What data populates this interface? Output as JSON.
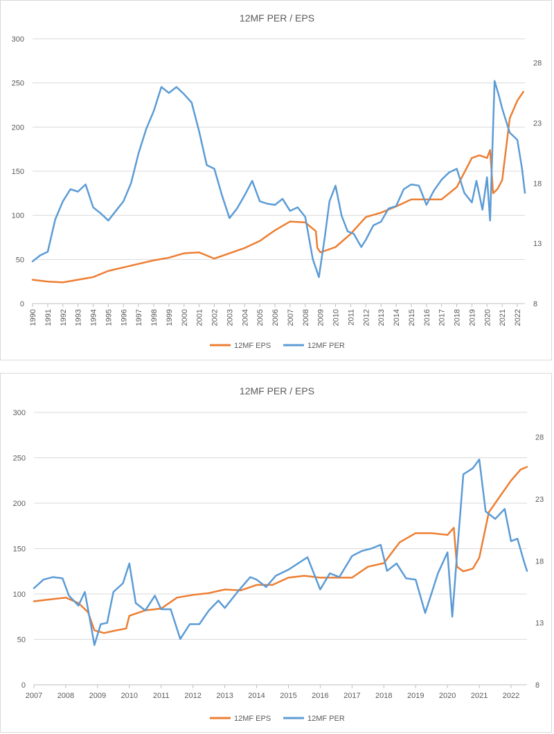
{
  "colors": {
    "eps": "#ED7D31",
    "per": "#5B9BD5",
    "grid": "#D9D9D9",
    "text": "#595959"
  },
  "chart_data": [
    {
      "type": "line",
      "title": "12MF PER / EPS",
      "x_ticks": [
        "1990",
        "1991",
        "1992",
        "1993",
        "1994",
        "1995",
        "1996",
        "1997",
        "1998",
        "1999",
        "2000",
        "2001",
        "2002",
        "2003",
        "2004",
        "2005",
        "2006",
        "2007",
        "2008",
        "2009",
        "2010",
        "2011",
        "2012",
        "2013",
        "2014",
        "2015",
        "2016",
        "2017",
        "2018",
        "2019",
        "2020",
        "2021",
        "2022"
      ],
      "x_range": [
        1990,
        2022.5
      ],
      "y_left": {
        "ticks": [
          "0",
          "50",
          "100",
          "150",
          "200",
          "250",
          "300"
        ],
        "range": [
          0,
          300
        ]
      },
      "y_right": {
        "ticks": [
          "8",
          "13",
          "18",
          "23",
          "28"
        ],
        "range": [
          8,
          30
        ]
      },
      "legend": [
        "12MF EPS",
        "12MF PER"
      ],
      "series": [
        {
          "name": "12MF EPS",
          "axis": "left",
          "x": [
            1990,
            1991,
            1992,
            1993,
            1994,
            1995,
            1996,
            1997,
            1998,
            1999,
            2000,
            2001,
            2002,
            2003,
            2004,
            2005,
            2006,
            2007,
            2008,
            2008.7,
            2008.8,
            2009,
            2010,
            2011,
            2012,
            2013,
            2014,
            2015,
            2016,
            2017,
            2018,
            2019,
            2019.5,
            2020,
            2020.2,
            2020.4,
            2020.7,
            2021,
            2021.5,
            2022,
            2022.4
          ],
          "y": [
            27,
            25,
            24,
            27,
            30,
            37,
            41,
            45,
            49,
            52,
            57,
            58,
            51,
            57,
            63,
            71,
            83,
            93,
            92,
            82,
            63,
            58,
            64,
            79,
            98,
            103,
            110,
            118,
            118,
            118,
            132,
            165,
            168,
            165,
            174,
            125,
            130,
            140,
            210,
            230,
            240
          ]
        },
        {
          "name": "12MF PER",
          "axis": "right",
          "x": [
            1990,
            1990.5,
            1991,
            1991.5,
            1992,
            1992.5,
            1993,
            1993.5,
            1994,
            1994.5,
            1995,
            1995.5,
            1996,
            1996.5,
            1997,
            1997.5,
            1998,
            1998.5,
            1999,
            1999.5,
            2000,
            2000.5,
            2001,
            2001.5,
            2002,
            2002.5,
            2003,
            2003.5,
            2004,
            2004.5,
            2005,
            2005.5,
            2006,
            2006.5,
            2007,
            2007.5,
            2008,
            2008.5,
            2008.9,
            2009.3,
            2009.6,
            2010,
            2010.4,
            2010.8,
            2011.2,
            2011.7,
            2012,
            2012.5,
            2013,
            2013.5,
            2014,
            2014.5,
            2015,
            2015.5,
            2016,
            2016.5,
            2017,
            2017.5,
            2018,
            2018.5,
            2019,
            2019.3,
            2019.7,
            2020,
            2020.2,
            2020.5,
            2020.8,
            2021,
            2021.5,
            2022,
            2022.3,
            2022.5
          ],
          "y": [
            11.5,
            12,
            12.3,
            15,
            16.5,
            17.5,
            17.3,
            17.9,
            16,
            15.5,
            14.9,
            15.7,
            16.5,
            18,
            20.5,
            22.5,
            24,
            26,
            25.5,
            26,
            25.4,
            24.7,
            22.3,
            19.5,
            19.2,
            17,
            15.1,
            15.9,
            17,
            18.2,
            16.5,
            16.3,
            16.2,
            16.7,
            15.7,
            16,
            15.2,
            11.7,
            10.2,
            13.6,
            16.5,
            17.8,
            15.3,
            14,
            13.8,
            12.7,
            13.3,
            14.5,
            14.8,
            15.9,
            16.1,
            17.5,
            17.9,
            17.8,
            16.2,
            17.4,
            18.3,
            18.9,
            19.2,
            17.2,
            16.4,
            18.2,
            15.8,
            18.5,
            14.9,
            26.5,
            25.2,
            24.2,
            22.2,
            21.6,
            19.3,
            17.2
          ]
        }
      ]
    },
    {
      "type": "line",
      "title": "12MF PER / EPS",
      "x_ticks": [
        "2007",
        "2008",
        "2009",
        "2010",
        "2011",
        "2012",
        "2013",
        "2014",
        "2015",
        "2016",
        "2017",
        "2018",
        "2019",
        "2020",
        "2021",
        "2022"
      ],
      "x_range": [
        2007,
        2022.5
      ],
      "y_left": {
        "ticks": [
          "0",
          "50",
          "100",
          "150",
          "200",
          "250",
          "300"
        ],
        "range": [
          0,
          300
        ]
      },
      "y_right": {
        "ticks": [
          "8",
          "13",
          "18",
          "23",
          "28"
        ],
        "range": [
          8,
          30
        ]
      },
      "legend": [
        "12MF EPS",
        "12MF PER"
      ],
      "series": [
        {
          "name": "12MF EPS",
          "axis": "left",
          "x": [
            2007,
            2007.5,
            2008,
            2008.4,
            2008.7,
            2008.9,
            2009.2,
            2009.6,
            2009.9,
            2010,
            2010.5,
            2011,
            2011.5,
            2012,
            2012.5,
            2013,
            2013.5,
            2014,
            2014.5,
            2015,
            2015.5,
            2016,
            2016.5,
            2017,
            2017.5,
            2018,
            2018.5,
            2019,
            2019.5,
            2020,
            2020.2,
            2020.3,
            2020.5,
            2020.8,
            2021,
            2021.3,
            2021.6,
            2022,
            2022.3,
            2022.5
          ],
          "y": [
            92,
            94,
            96,
            90,
            80,
            60,
            57,
            60,
            62,
            76,
            82,
            84,
            96,
            99,
            101,
            105,
            104,
            110,
            110,
            118,
            120,
            118,
            118,
            118,
            130,
            134,
            157,
            167,
            167,
            165,
            173,
            130,
            125,
            128,
            140,
            190,
            205,
            225,
            237,
            240
          ]
        },
        {
          "name": "12MF PER",
          "axis": "right",
          "x": [
            2007,
            2007.3,
            2007.6,
            2007.9,
            2008.1,
            2008.4,
            2008.6,
            2008.8,
            2008.9,
            2009.1,
            2009.3,
            2009.5,
            2009.8,
            2010,
            2010.2,
            2010.5,
            2010.8,
            2011,
            2011.3,
            2011.6,
            2011.9,
            2012.2,
            2012.5,
            2012.8,
            2013,
            2013.4,
            2013.8,
            2014,
            2014.3,
            2014.6,
            2015,
            2015.3,
            2015.6,
            2016,
            2016.3,
            2016.6,
            2017,
            2017.3,
            2017.6,
            2017.9,
            2018.1,
            2018.4,
            2018.7,
            2019,
            2019.3,
            2019.7,
            2020,
            2020.15,
            2020.3,
            2020.5,
            2020.8,
            2021,
            2021.2,
            2021.5,
            2021.8,
            2022,
            2022.2,
            2022.4,
            2022.5
          ],
          "y": [
            15.8,
            16.5,
            16.7,
            16.6,
            15.2,
            14.4,
            15.5,
            12.7,
            11.2,
            12.9,
            13,
            15.5,
            16.2,
            17.8,
            14.6,
            14,
            15.2,
            14.1,
            14.1,
            11.7,
            12.9,
            12.9,
            14,
            14.8,
            14.2,
            15.5,
            16.7,
            16.5,
            15.9,
            16.8,
            17.3,
            17.8,
            18.3,
            15.7,
            17,
            16.7,
            18.4,
            18.8,
            19,
            19.3,
            17.2,
            17.8,
            16.6,
            16.5,
            13.8,
            17,
            18.7,
            13.5,
            18.5,
            25,
            25.5,
            26.2,
            22,
            21.4,
            22.2,
            19.6,
            19.8,
            18,
            17.2
          ]
        }
      ]
    }
  ]
}
